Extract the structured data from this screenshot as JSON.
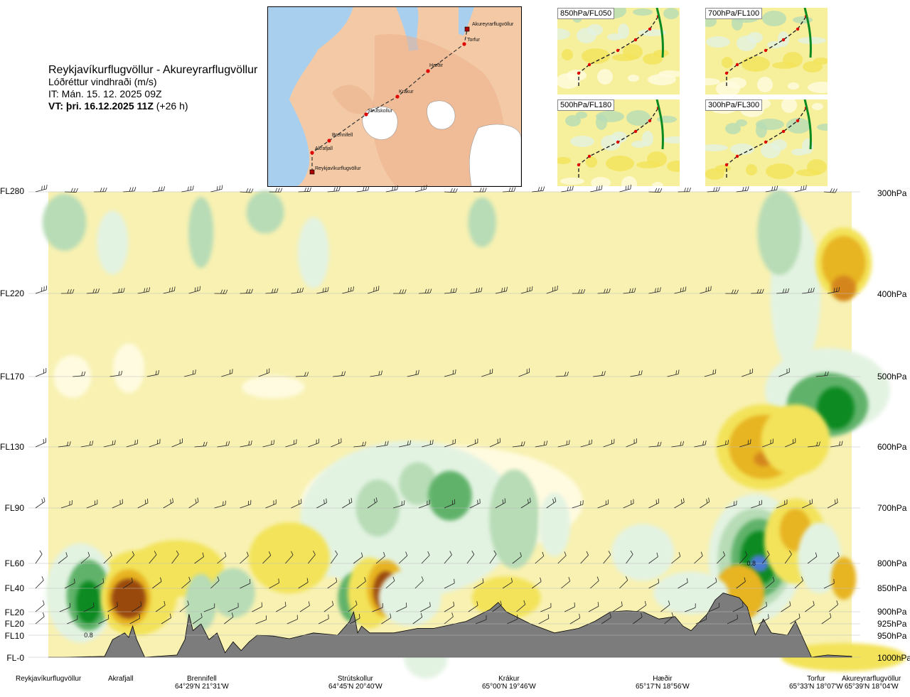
{
  "header": {
    "route_title": "Reykjavíkurflugvöllur - Akureyrarflugvöllur",
    "parameter": "Lóðréttur vindhraði (m/s)",
    "issue_time": "IT: Mán. 15. 12. 2025 09Z",
    "valid_time_bold": "VT: þri. 16.12.2025 11Z",
    "valid_time_offset": "(+26 h)"
  },
  "map_inset": {
    "waypoints": [
      "Akureyrarflugvöllur",
      "Torfur",
      "Hæðir",
      "Krákur",
      "Strútskollur",
      "Brennifell",
      "Akrafjall",
      "Reykjavíkurflugvöllur"
    ],
    "colors": {
      "land": "#f3c9a6",
      "sea": "#a9cfee",
      "glacier": "#ffffff",
      "route": "#333333",
      "waypoint": "#e00000"
    }
  },
  "mini_maps": [
    {
      "label": "850hPa/FL050"
    },
    {
      "label": "700hPa/FL100"
    },
    {
      "label": "500hPa/FL180"
    },
    {
      "label": "300hPa/FL300"
    }
  ],
  "levels": {
    "left": [
      "FL280",
      "FL220",
      "FL170",
      "FL130",
      "FL90",
      "FL60",
      "FL40",
      "FL20",
      "FL20",
      "FL10",
      "FL-0"
    ],
    "right": [
      "300hPa",
      "400hPa",
      "500hPa",
      "600hPa",
      "700hPa",
      "800hPa",
      "850hPa",
      "900hPa",
      "925hPa",
      "950hPa",
      "1000hPa"
    ]
  },
  "stations": [
    {
      "name": "Reykjavíkurflugvöllur",
      "coord": ""
    },
    {
      "name": "Akrafjall",
      "coord": ""
    },
    {
      "name": "Brennifell",
      "coord": "64°29'N 21°31'W"
    },
    {
      "name": "Strútskollur",
      "coord": "64°45'N 20°40'W"
    },
    {
      "name": "Krákur",
      "coord": "65°00'N 19°46'W"
    },
    {
      "name": "Hæðir",
      "coord": "65°17'N 18°56'W"
    },
    {
      "name": "Torfur",
      "coord": "65°33'N 18°07'W"
    },
    {
      "name": "Akureyrarflugvöllur",
      "coord": "65°39'N 18°04'W"
    }
  ],
  "chart_data": {
    "type": "heatmap",
    "title": "Reykjavíkurflugvöllur - Akureyrarflugvöllur",
    "quantity": "Lóðréttur vindhraði (m/s)",
    "x_categories": [
      "Reykjavíkurflugvöllur",
      "Akrafjall",
      "Brennifell",
      "Strútskollur",
      "Krákur",
      "Hæðir",
      "Torfur",
      "Akureyrarflugvöllur"
    ],
    "y_levels_hpa": [
      300,
      400,
      500,
      600,
      700,
      800,
      850,
      900,
      925,
      950,
      1000
    ],
    "y_levels_fl": [
      "FL280",
      "FL220",
      "FL170",
      "FL130",
      "FL90",
      "FL60",
      "FL40",
      "FL20",
      "FL20",
      "FL10",
      "FL-0"
    ],
    "contour_labels": [
      {
        "value": "0.8",
        "station_fraction": 0.05,
        "pressure_hpa": 950
      },
      {
        "value": "0.8",
        "station_fraction": 0.875,
        "pressure_hpa": 800
      }
    ],
    "color_scale": {
      "strong_up": "#0b8a22",
      "up": "#61b26a",
      "weak_up": "#b7dcb6",
      "very_weak_up": "#e3f3e2",
      "neutral": "#f8f1b2",
      "neutral_light": "#fffbe0",
      "weak_down": "#f3e35a",
      "down": "#e7b420",
      "strong_down": "#d4861c",
      "very_strong_down": "#9a4a10",
      "max_up": "#4a7bd0",
      "terrain": "#7c7c7c"
    },
    "features": {
      "terrain_shaded": true,
      "wind_barbs": true,
      "grid": false
    }
  }
}
